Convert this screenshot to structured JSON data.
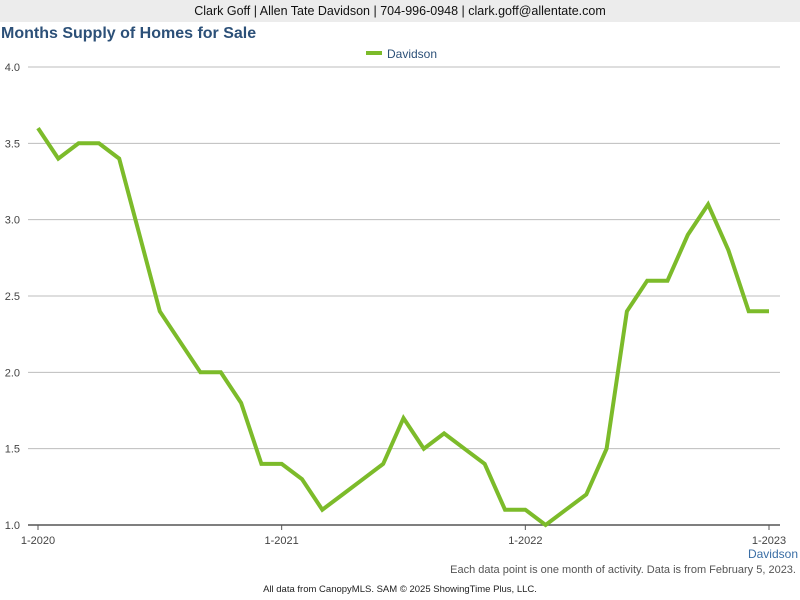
{
  "header": {
    "contact": "Clark Goff | Allen Tate Davidson | 704-996-0948 | clark.goff@allentate.com"
  },
  "chart_title": "Months Supply of Homes for Sale",
  "note": "Each data point is one month of activity. Data is from February 5, 2023.",
  "footer": "All data from CanopyMLS. SAM © 2025 ShowingTime Plus, LLC.",
  "colors": {
    "series": "#7cbb2a",
    "title": "#2c5078",
    "grid": "#bdbdbd"
  },
  "chart_data": {
    "type": "line",
    "title": "Months Supply of Homes for Sale",
    "xlabel": "",
    "ylabel": "",
    "ylim": [
      1.0,
      4.0
    ],
    "yticks": [
      "1.0",
      "1.5",
      "2.0",
      "2.5",
      "3.0",
      "3.5",
      "4.0"
    ],
    "xticks": [
      "1-2020",
      "1-2021",
      "1-2022",
      "1-2023"
    ],
    "x_axis_caption": "Davidson",
    "grid": true,
    "legend_position": "top-center",
    "x": [
      "1-2020",
      "2-2020",
      "3-2020",
      "4-2020",
      "5-2020",
      "6-2020",
      "7-2020",
      "8-2020",
      "9-2020",
      "10-2020",
      "11-2020",
      "12-2020",
      "1-2021",
      "2-2021",
      "3-2021",
      "4-2021",
      "5-2021",
      "6-2021",
      "7-2021",
      "8-2021",
      "9-2021",
      "10-2021",
      "11-2021",
      "12-2021",
      "1-2022",
      "2-2022",
      "3-2022",
      "4-2022",
      "5-2022",
      "6-2022",
      "7-2022",
      "8-2022",
      "9-2022",
      "10-2022",
      "11-2022",
      "12-2022",
      "1-2023"
    ],
    "series": [
      {
        "name": "Davidson",
        "color": "#7cbb2a",
        "values": [
          3.6,
          3.4,
          3.5,
          3.5,
          3.4,
          2.9,
          2.4,
          2.2,
          2.0,
          2.0,
          1.8,
          1.4,
          1.4,
          1.3,
          1.1,
          1.2,
          1.3,
          1.4,
          1.7,
          1.5,
          1.6,
          1.5,
          1.4,
          1.1,
          1.1,
          1.0,
          1.1,
          1.2,
          1.5,
          2.4,
          2.6,
          2.6,
          2.9,
          3.1,
          2.8,
          2.4,
          2.4
        ]
      }
    ]
  }
}
